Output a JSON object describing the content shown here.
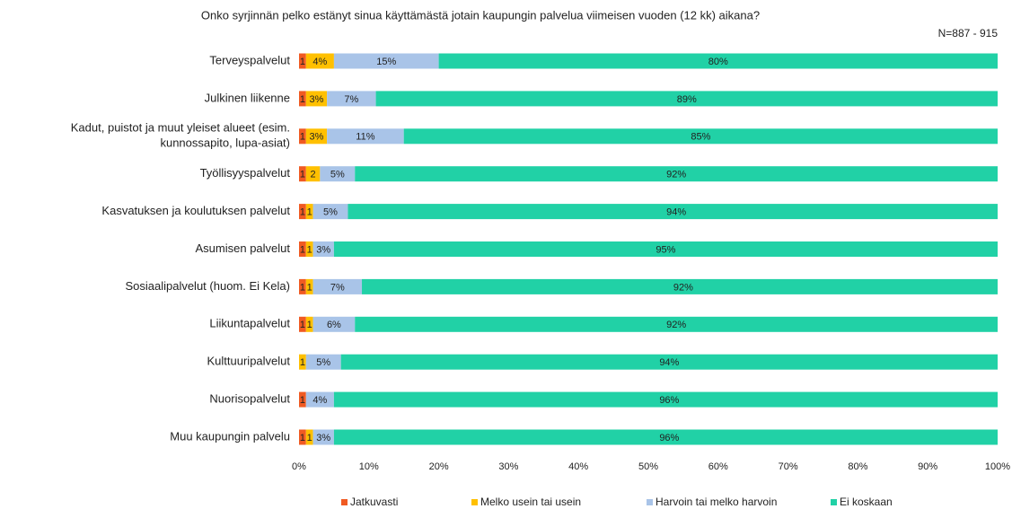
{
  "chart_data": {
    "type": "stacked_barh",
    "title": "Onko syrjinnän pelko estänyt sinua käyttämästä jotain kaupungin palvelua viimeisen vuoden (12 kk) aikana?",
    "annotation": "N=887 - 915",
    "categories": [
      "Terveyspalvelut",
      "Julkinen liikenne",
      "Kadut, puistot ja muut yleiset alueet (esim. kunnossapito, lupa-asiat)",
      "Työllisyyspalvelut",
      "Kasvatuksen ja koulutuksen palvelut",
      "Asumisen palvelut",
      "Sosiaalipalvelut (huom. Ei Kela)",
      "Liikuntapalvelut",
      "Kulttuuripalvelut",
      "Nuorisopalvelut",
      "Muu kaupungin palvelu"
    ],
    "series": [
      {
        "name": "Jatkuvasti",
        "color": "#f05a22",
        "values": [
          1,
          1,
          1,
          1,
          1,
          1,
          1,
          1,
          null,
          1,
          1
        ],
        "value_labels": [
          "1",
          "1",
          "1",
          "1",
          "1",
          "1",
          "1",
          "1",
          null,
          "1",
          "1"
        ]
      },
      {
        "name": "Melko usein tai usein",
        "color": "#ffc000",
        "values": [
          4,
          3,
          3,
          2,
          1,
          1,
          1,
          1,
          1,
          null,
          1
        ],
        "value_labels": [
          "4%",
          "3%",
          "3%",
          "2",
          "1",
          "1",
          "1",
          "1",
          "1",
          null,
          "1"
        ]
      },
      {
        "name": "Harvoin tai melko harvoin",
        "color": "#a9c4e8",
        "values": [
          15,
          7,
          11,
          5,
          5,
          3,
          7,
          6,
          5,
          4,
          3
        ],
        "value_labels": [
          "15%",
          "7%",
          "11%",
          "5%",
          "5%",
          "3%",
          "7%",
          "6%",
          "5%",
          "4%",
          "3%"
        ]
      },
      {
        "name": "Ei koskaan",
        "color": "#21d1a6",
        "values": [
          80,
          89,
          85,
          92,
          94,
          95,
          92,
          92,
          94,
          96,
          96
        ],
        "value_labels": [
          "80%",
          "89%",
          "85%",
          "92%",
          "94%",
          "95%",
          "92%",
          "92%",
          "94%",
          "96%",
          "96%"
        ]
      }
    ],
    "xlim": [
      0,
      100
    ],
    "xticks": [
      {
        "value": 0,
        "label": "0%"
      },
      {
        "value": 10,
        "label": "10%"
      },
      {
        "value": 20,
        "label": "20%"
      },
      {
        "value": 30,
        "label": "30%"
      },
      {
        "value": 40,
        "label": "40%"
      },
      {
        "value": 50,
        "label": "50%"
      },
      {
        "value": 60,
        "label": "60%"
      },
      {
        "value": 70,
        "label": "70%"
      },
      {
        "value": 80,
        "label": "80%"
      },
      {
        "value": 90,
        "label": "90%"
      },
      {
        "value": 100,
        "label": "100%"
      }
    ],
    "legend": "bottom"
  }
}
